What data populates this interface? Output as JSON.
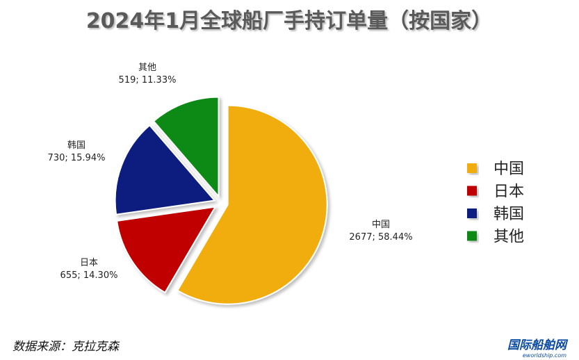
{
  "chart_data": {
    "type": "pie",
    "title": "2024年1月全球船厂手持订单量（按国家）",
    "categories": [
      "中国",
      "日本",
      "韩国",
      "其他"
    ],
    "values": [
      2677,
      655,
      730,
      519
    ],
    "value_labels": [
      "2677; 58.44%",
      "655; 14.30%",
      "730; 15.94%",
      "519; 11.33%"
    ],
    "colors": [
      "#f0ad10",
      "#c00000",
      "#0c1f7f",
      "#0a8a12"
    ],
    "legend": "right",
    "source": "数据来源：克拉克森",
    "watermark": "国际船舶网",
    "watermark_sub": "eworldship.com"
  }
}
